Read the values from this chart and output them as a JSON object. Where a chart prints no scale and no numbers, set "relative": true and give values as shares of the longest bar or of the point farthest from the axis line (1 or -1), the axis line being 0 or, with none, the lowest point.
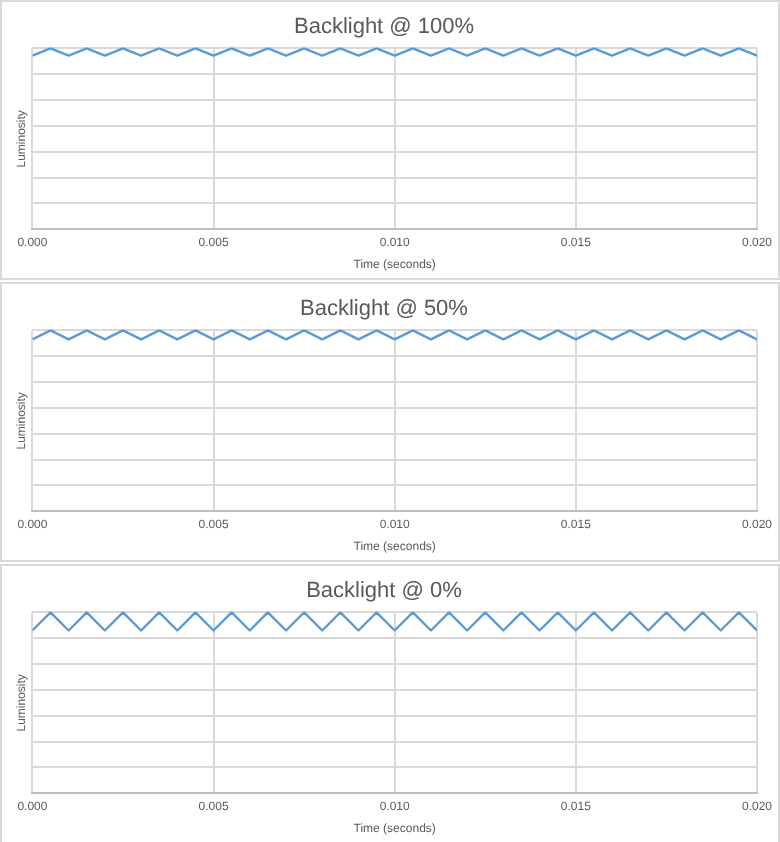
{
  "chart_data": [
    {
      "type": "line",
      "title": "Backlight @ 100%",
      "xlabel": "Time (seconds)",
      "ylabel": "Luminosity",
      "relative": true,
      "grid": true,
      "legend": false,
      "marker": "none",
      "line_style": "solid",
      "xlim": [
        0,
        0.02
      ],
      "xticks": [
        {
          "value": 0,
          "label": "0.000"
        },
        {
          "value": 0.005,
          "label": "0.005"
        },
        {
          "value": 0.01,
          "label": "0.010"
        },
        {
          "value": 0.015,
          "label": "0.015"
        },
        {
          "value": 0.02,
          "label": "0.020"
        }
      ],
      "x": [
        0,
        0.0005,
        0.001,
        0.0015,
        0.002,
        0.0025,
        0.003,
        0.0035,
        0.004,
        0.0045,
        0.005,
        0.0055,
        0.006,
        0.0065,
        0.007,
        0.0075,
        0.008,
        0.0085,
        0.009,
        0.0095,
        0.01,
        0.0105,
        0.011,
        0.0115,
        0.012,
        0.0125,
        0.013,
        0.0135,
        0.014,
        0.0145,
        0.015,
        0.0155,
        0.016,
        0.0165,
        0.017,
        0.0175,
        0.018,
        0.0185,
        0.019,
        0.0195,
        0.02
      ],
      "series": [
        {
          "color": "#5b9bd5",
          "values": [
            0.96,
            1,
            0.96,
            1,
            0.96,
            1,
            0.96,
            1,
            0.96,
            1,
            0.96,
            1,
            0.96,
            1,
            0.96,
            1,
            0.96,
            1,
            0.96,
            1,
            0.96,
            1,
            0.96,
            1,
            0.96,
            1,
            0.96,
            1,
            0.96,
            1,
            0.96,
            1,
            0.96,
            1,
            0.96,
            1,
            0.96,
            1,
            0.96,
            1,
            0.96
          ]
        }
      ]
    },
    {
      "type": "line",
      "title": "Backlight @ 50%",
      "xlabel": "Time (seconds)",
      "ylabel": "Luminosity",
      "relative": true,
      "grid": true,
      "legend": false,
      "marker": "none",
      "line_style": "solid",
      "xlim": [
        0,
        0.02
      ],
      "xticks": [
        {
          "value": 0,
          "label": "0.000"
        },
        {
          "value": 0.005,
          "label": "0.005"
        },
        {
          "value": 0.01,
          "label": "0.010"
        },
        {
          "value": 0.015,
          "label": "0.015"
        },
        {
          "value": 0.02,
          "label": "0.020"
        }
      ],
      "x": [
        0,
        0.0005,
        0.001,
        0.0015,
        0.002,
        0.0025,
        0.003,
        0.0035,
        0.004,
        0.0045,
        0.005,
        0.0055,
        0.006,
        0.0065,
        0.007,
        0.0075,
        0.008,
        0.0085,
        0.009,
        0.0095,
        0.01,
        0.0105,
        0.011,
        0.0115,
        0.012,
        0.0125,
        0.013,
        0.0135,
        0.014,
        0.0145,
        0.015,
        0.0155,
        0.016,
        0.0165,
        0.017,
        0.0175,
        0.018,
        0.0185,
        0.019,
        0.0195,
        0.02
      ],
      "series": [
        {
          "color": "#5b9bd5",
          "values": [
            0.95,
            1,
            0.95,
            1,
            0.95,
            1,
            0.95,
            1,
            0.95,
            1,
            0.95,
            1,
            0.95,
            1,
            0.95,
            1,
            0.95,
            1,
            0.95,
            1,
            0.95,
            1,
            0.95,
            1,
            0.95,
            1,
            0.95,
            1,
            0.95,
            1,
            0.95,
            1,
            0.95,
            1,
            0.95,
            1,
            0.95,
            1,
            0.95,
            1,
            0.95
          ]
        }
      ]
    },
    {
      "type": "line",
      "title": "Backlight @ 0%",
      "xlabel": "Time (seconds)",
      "ylabel": "Luminosity",
      "relative": true,
      "grid": true,
      "legend": false,
      "marker": "none",
      "line_style": "solid",
      "xlim": [
        0,
        0.02
      ],
      "xticks": [
        {
          "value": 0,
          "label": "0.000"
        },
        {
          "value": 0.005,
          "label": "0.005"
        },
        {
          "value": 0.01,
          "label": "0.010"
        },
        {
          "value": 0.015,
          "label": "0.015"
        },
        {
          "value": 0.02,
          "label": "0.020"
        }
      ],
      "x": [
        0,
        0.0005,
        0.001,
        0.0015,
        0.002,
        0.0025,
        0.003,
        0.0035,
        0.004,
        0.0045,
        0.005,
        0.0055,
        0.006,
        0.0065,
        0.007,
        0.0075,
        0.008,
        0.0085,
        0.009,
        0.0095,
        0.01,
        0.0105,
        0.011,
        0.0115,
        0.012,
        0.0125,
        0.013,
        0.0135,
        0.014,
        0.0145,
        0.015,
        0.0155,
        0.016,
        0.0165,
        0.017,
        0.0175,
        0.018,
        0.0185,
        0.019,
        0.0195,
        0.02
      ],
      "series": [
        {
          "color": "#5b9bd5",
          "values": [
            0.9,
            1,
            0.9,
            1,
            0.9,
            1,
            0.9,
            1,
            0.9,
            1,
            0.9,
            1,
            0.9,
            1,
            0.9,
            1,
            0.9,
            1,
            0.9,
            1,
            0.9,
            1,
            0.9,
            1,
            0.9,
            1,
            0.9,
            1,
            0.9,
            1,
            0.9,
            1,
            0.9,
            1,
            0.9,
            1,
            0.9,
            1,
            0.9,
            1,
            0.9
          ]
        }
      ]
    }
  ]
}
